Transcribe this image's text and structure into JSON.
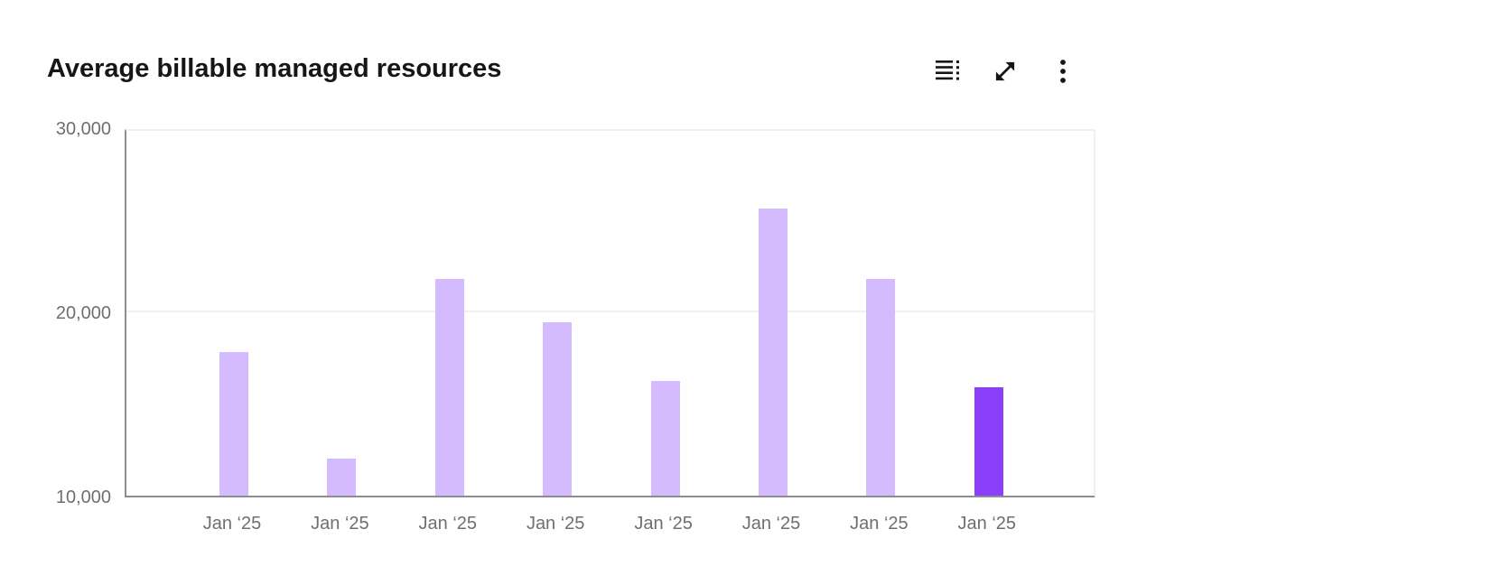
{
  "header": {
    "title": "Average billable managed resources",
    "toolbar": {
      "show_table_label": "Show as table",
      "maximize_label": "Maximize",
      "options_label": "Options"
    }
  },
  "colors": {
    "bar": "#d4bbff",
    "bar_highlight": "#8a3ffc",
    "axis_line": "#8d8d8d",
    "gridline": "#f0f0f0",
    "tick_text": "#6f6f6f",
    "title_text": "#161616"
  },
  "chart_data": {
    "type": "bar",
    "title": "Average billable managed resources",
    "categories": [
      "Jan ‘25",
      "Jan ‘25",
      "Jan ‘25",
      "Jan ‘25",
      "Jan ‘25",
      "Jan ‘25",
      "Jan ‘25",
      "Jan ‘25"
    ],
    "values": [
      17800,
      12000,
      21750,
      19400,
      16250,
      25600,
      21750,
      15900
    ],
    "highlight_index": 7,
    "xlabel": "",
    "ylabel": "",
    "ylim": [
      10000,
      30000
    ],
    "yticks": [
      10000,
      20000,
      30000
    ],
    "ytick_labels": [
      "10,000",
      "20,000",
      "30,000"
    ],
    "grid": "horizontal",
    "legend": "none"
  }
}
